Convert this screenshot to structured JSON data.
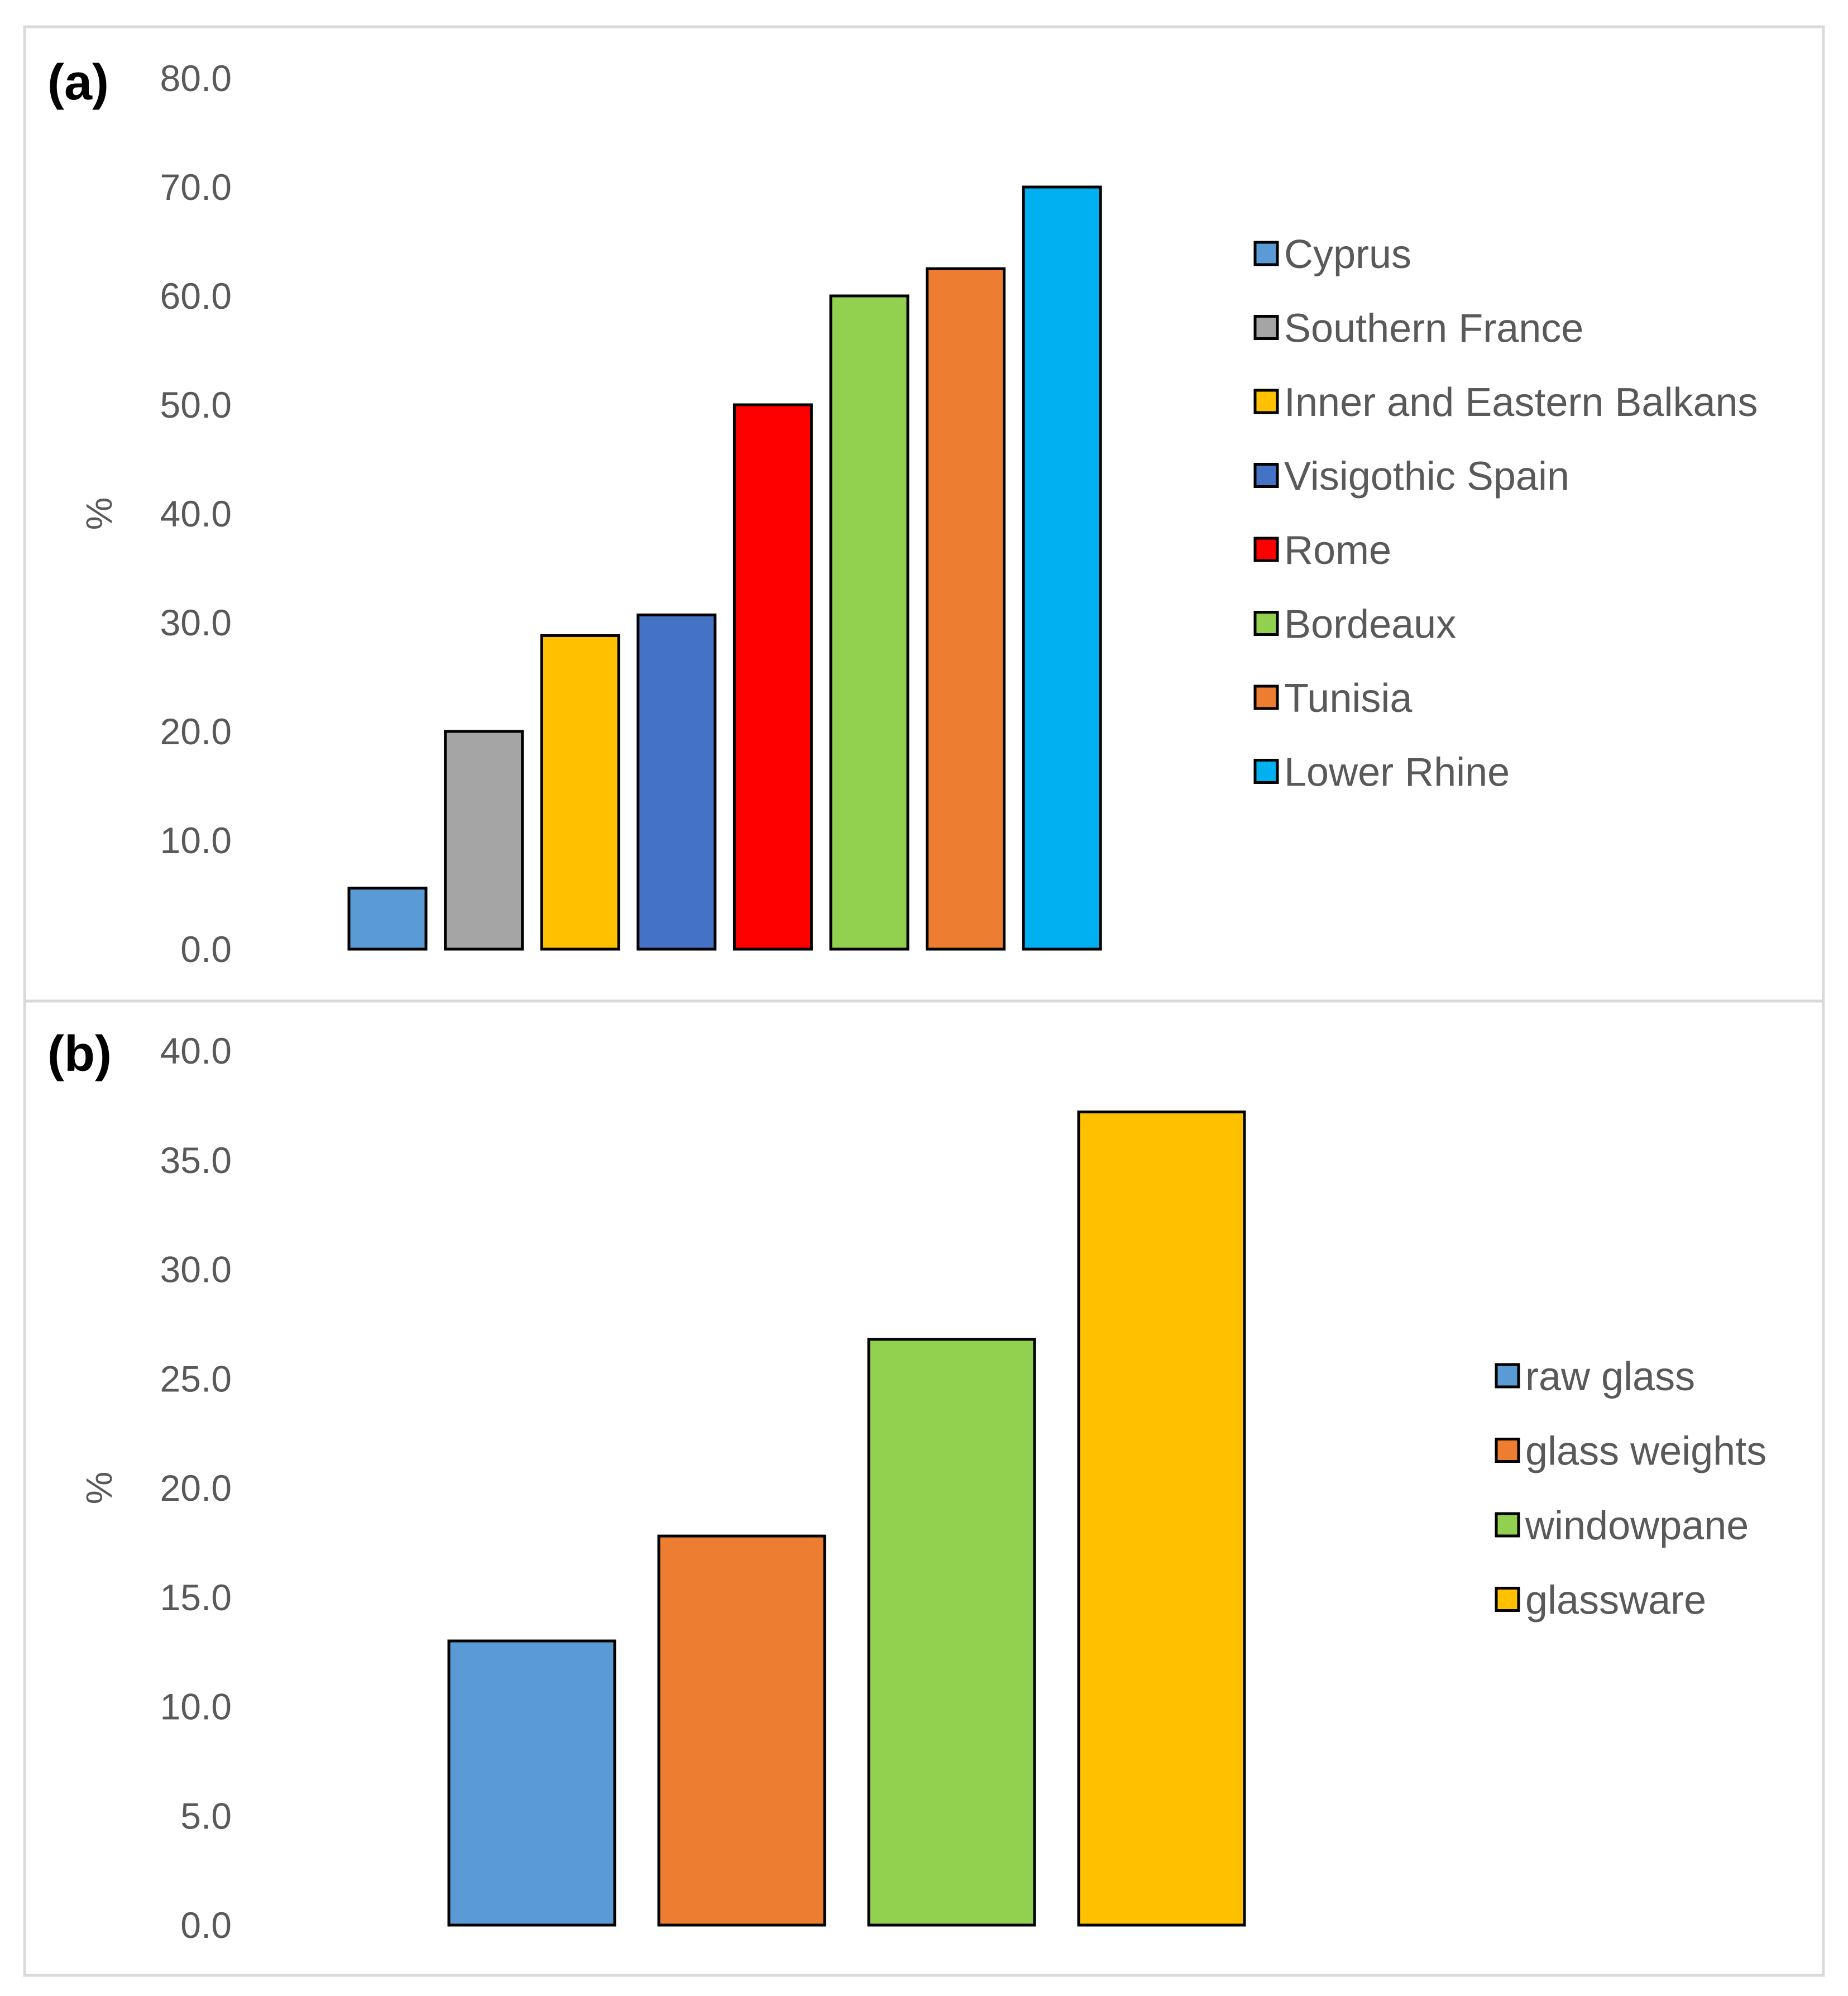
{
  "chart_data": [
    {
      "type": "bar",
      "panel_label": "(a)",
      "title": "",
      "xlabel": "",
      "ylabel": "%",
      "ylim": [
        0,
        80
      ],
      "yticks": [
        "0.0",
        "10.0",
        "20.0",
        "30.0",
        "40.0",
        "50.0",
        "60.0",
        "70.0",
        "80.0"
      ],
      "grid": false,
      "legend_position": "right",
      "series": [
        {
          "name": "Cyprus",
          "value": 5.6,
          "color": "#5B9BD5"
        },
        {
          "name": "Southern France",
          "value": 20.0,
          "color": "#A5A5A5"
        },
        {
          "name": "Inner and Eastern Balkans",
          "value": 28.8,
          "color": "#FFC000"
        },
        {
          "name": "Visigothic Spain",
          "value": 30.7,
          "color": "#4472C4"
        },
        {
          "name": "Rome",
          "value": 50.0,
          "color": "#FF0000"
        },
        {
          "name": "Bordeaux",
          "value": 60.0,
          "color": "#92D050"
        },
        {
          "name": "Tunisia",
          "value": 62.5,
          "color": "#ED7D31"
        },
        {
          "name": "Lower Rhine",
          "value": 70.0,
          "color": "#00B0F0"
        }
      ]
    },
    {
      "type": "bar",
      "panel_label": "(b)",
      "title": "",
      "xlabel": "",
      "ylabel": "%",
      "ylim": [
        0,
        40
      ],
      "yticks": [
        "0.0",
        "5.0",
        "10.0",
        "15.0",
        "20.0",
        "25.0",
        "30.0",
        "35.0",
        "40.0"
      ],
      "grid": false,
      "legend_position": "right",
      "series": [
        {
          "name": "raw glass",
          "value": 13.0,
          "color": "#5B9BD5"
        },
        {
          "name": "glass weights",
          "value": 17.8,
          "color": "#ED7D31"
        },
        {
          "name": "windowpane",
          "value": 26.8,
          "color": "#92D050"
        },
        {
          "name": "glassware",
          "value": 37.2,
          "color": "#FFC000"
        }
      ]
    }
  ]
}
